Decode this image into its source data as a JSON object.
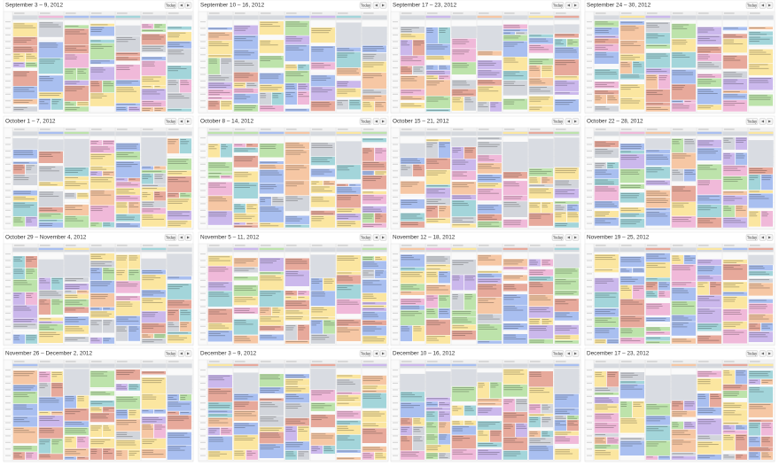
{
  "panels": [
    {
      "title": "September 3 – 9, 2012",
      "button": "Today"
    },
    {
      "title": "September 10 – 16, 2012",
      "button": "Today"
    },
    {
      "title": "September 17 – 23, 2012",
      "button": "Today"
    },
    {
      "title": "September 24 – 30, 2012",
      "button": "Today"
    },
    {
      "title": "October 1 – 7, 2012",
      "button": "Today"
    },
    {
      "title": "October 8 – 14, 2012",
      "button": "Today"
    },
    {
      "title": "October 15 – 21, 2012",
      "button": "Today"
    },
    {
      "title": "October 22 – 28, 2012",
      "button": "Today"
    },
    {
      "title": "October 29 – November 4, 2012",
      "button": "Today"
    },
    {
      "title": "November 5 – 11, 2012",
      "button": "Today"
    },
    {
      "title": "November 12 – 18, 2012",
      "button": "Today"
    },
    {
      "title": "November 19 – 25, 2012",
      "button": "Today"
    },
    {
      "title": "November 26 – December 2, 2012",
      "button": "Today"
    },
    {
      "title": "December 3 – 9, 2012",
      "button": "Today"
    },
    {
      "title": "December 10 – 16, 2012",
      "button": "Today"
    },
    {
      "title": "December 17 – 23, 2012",
      "button": "Today"
    }
  ]
}
